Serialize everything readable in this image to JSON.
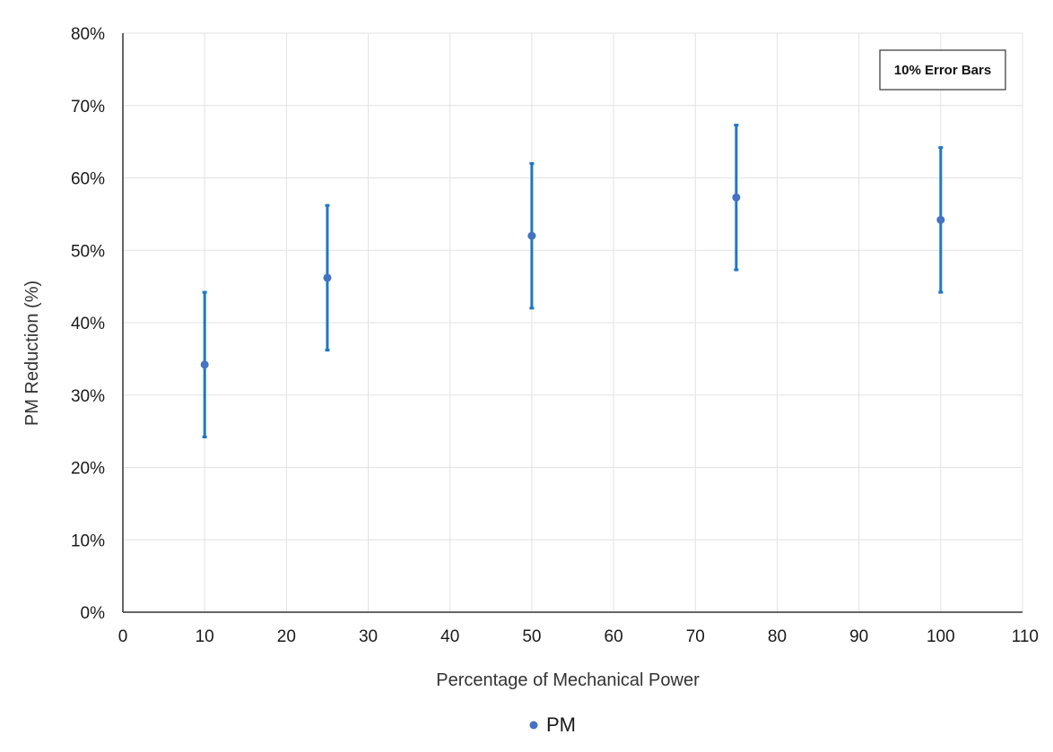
{
  "chart_data": {
    "type": "scatter",
    "title": "",
    "xlabel": "Percentage of Mechanical Power",
    "ylabel": "PM Reduction (%)",
    "xlim": [
      0,
      110
    ],
    "ylim": [
      0,
      80
    ],
    "x_ticks": [
      "0",
      "10",
      "20",
      "30",
      "40",
      "50",
      "60",
      "70",
      "80",
      "90",
      "100",
      "110"
    ],
    "y_ticks": [
      "0%",
      "10%",
      "20%",
      "30%",
      "40%",
      "50%",
      "60%",
      "70%",
      "80%"
    ],
    "grid": true,
    "legend_position": "bottom",
    "annotation": "10% Error Bars",
    "error_bar": 10,
    "series": [
      {
        "name": "PM",
        "color": "#4472C4",
        "error_color": "#1F77C4",
        "x": [
          10,
          25,
          50,
          75,
          100
        ],
        "y": [
          34.2,
          46.2,
          52,
          57.3,
          54.2
        ]
      }
    ]
  }
}
